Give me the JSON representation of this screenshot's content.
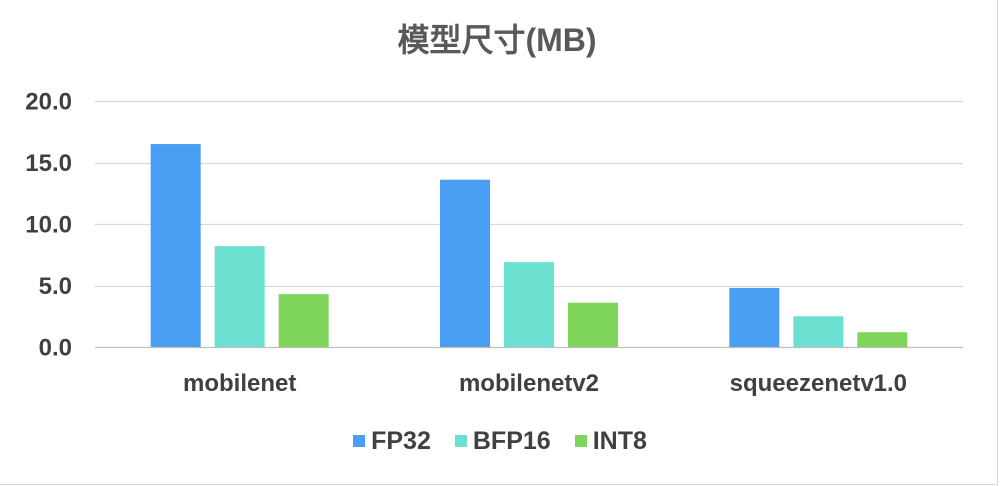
{
  "chart_data": {
    "type": "bar",
    "title": "模型尺寸(MB)",
    "xlabel": "",
    "ylabel": "",
    "categories": [
      "mobilenet",
      "mobilenetv2",
      "squeezenetv1.0"
    ],
    "series": [
      {
        "name": "FP32",
        "values": [
          16.5,
          13.6,
          4.8
        ],
        "color": "#4a9ff5"
      },
      {
        "name": "BFP16",
        "values": [
          8.2,
          6.9,
          2.5
        ],
        "color": "#6de1d1"
      },
      {
        "name": "INT8",
        "values": [
          4.3,
          3.6,
          1.2
        ],
        "color": "#7fd45a"
      }
    ],
    "ylim": [
      0,
      20
    ],
    "yticks": [
      "0.0",
      "5.0",
      "10.0",
      "15.0",
      "20.0"
    ],
    "grid": true,
    "legend": "bottom",
    "colors": {
      "gridline": "#d9d9d9",
      "axis": "#bfbfbf",
      "frame": "#d9d9d9"
    }
  }
}
